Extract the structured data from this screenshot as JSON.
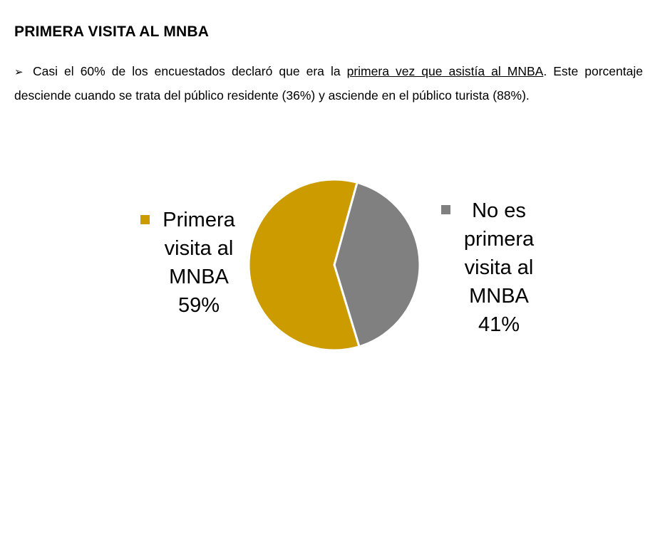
{
  "heading": "PRIMERA VISITA AL MNBA",
  "paragraph": {
    "bullet": "➢",
    "text_before": "Casi el 60% de los encuestados declaró que era la ",
    "text_underlined": "primera vez que asistía al MNBA",
    "text_after": ". Este porcentaje desciende cuando se trata del público residente (36%) y asciende en el público turista (88%)."
  },
  "chart_data": {
    "type": "pie",
    "title": "",
    "slices": [
      {
        "label_lines": [
          "Primera",
          "visita al",
          "MNBA",
          "59%"
        ],
        "category": "Primera visita al MNBA",
        "value": 59,
        "color": "#CC9B00"
      },
      {
        "label_lines": [
          "No es",
          "primera",
          "visita al",
          "MNBA",
          "41%"
        ],
        "category": "No es primera visita al MNBA",
        "value": 41,
        "color": "#808080"
      }
    ],
    "separator_color": "#FFFFFF"
  }
}
